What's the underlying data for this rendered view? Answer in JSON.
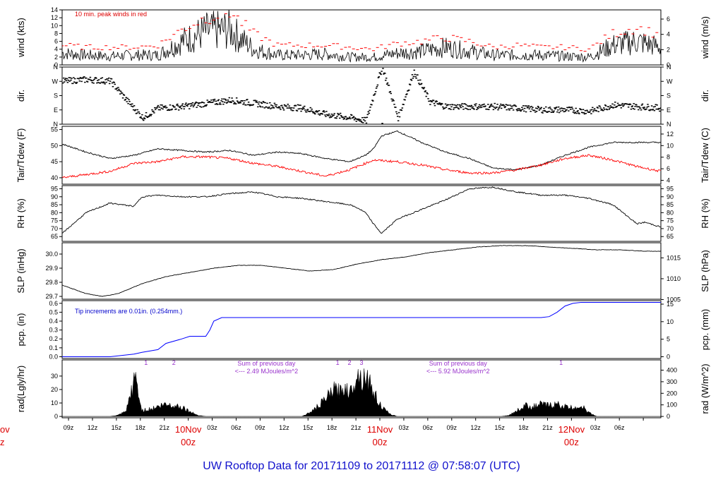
{
  "title": "UW Rooftop Data for 20171109  to  20171112 @ 07:58:07  (UTC)",
  "x_ticks": [
    "09z",
    "12z",
    "15z",
    "18z",
    "21z",
    "03z",
    "06z",
    "09z",
    "12z",
    "15z",
    "18z",
    "21z",
    "03z",
    "06z",
    "09z",
    "12z",
    "15z",
    "18z",
    "21z",
    "03z",
    "06z"
  ],
  "day_labels": [
    {
      "date": "10Nov",
      "time": "00z"
    },
    {
      "date": "11Nov",
      "time": "00z"
    },
    {
      "date": "12Nov",
      "time": "00z"
    }
  ],
  "left_edge_labels": {
    "date": "ov",
    "time": "z"
  },
  "colors": {
    "main": "#000000",
    "peak": "#ff0000",
    "dew": "#ff0000",
    "pcp": "#0000ff",
    "annot_wind": "#dd0000",
    "annot_pcp": "#0000cc",
    "annot_rad": "#9933cc",
    "day": "#dd0000",
    "title": "#1010cc"
  },
  "chart_data": [
    {
      "id": "wind",
      "type": "line",
      "ylabel": "wind (kts)",
      "ylabel_right": "wind (m/s)",
      "ylim": [
        0,
        14
      ],
      "yticks": [
        0,
        2,
        4,
        6,
        8,
        10,
        12,
        14
      ],
      "right_ylim_ms": [
        0,
        7.2
      ],
      "right_ticks": [
        0,
        2,
        4,
        6
      ],
      "annotation": "10 min. peak winds in red",
      "series": [
        {
          "name": "",
          "x_hours": [
            0,
            3,
            6,
            9,
            12,
            15,
            18,
            21,
            24,
            27,
            30,
            33,
            36,
            39,
            42,
            45,
            48,
            51,
            54,
            57,
            60,
            63,
            66,
            69,
            72,
            75
          ],
          "values": [
            3,
            2.5,
            2.2,
            2.5,
            2.5,
            6,
            8.5,
            9,
            4,
            2.5,
            2.5,
            2.8,
            2,
            2,
            3,
            3.5,
            4.5,
            3.5,
            2.5,
            2.5,
            2.5,
            2.2,
            2,
            5,
            6,
            4.5
          ]
        },
        {
          "name": "",
          "x_hours": [
            0,
            3,
            6,
            9,
            12,
            15,
            18,
            21,
            24,
            27,
            30,
            33,
            36,
            39,
            42,
            45,
            48,
            51,
            54,
            57,
            60,
            63,
            66,
            69,
            72,
            75
          ],
          "values": [
            5,
            4.5,
            4.5,
            4.5,
            5,
            9,
            12,
            13.5,
            8,
            5,
            5,
            5,
            4.5,
            4,
            5.5,
            6,
            7,
            6,
            4.5,
            5,
            4.5,
            4.5,
            4,
            8,
            9.5,
            7.5
          ]
        }
      ]
    },
    {
      "id": "dir",
      "type": "scatter",
      "ylabel": "dir.",
      "ylabel_right": "dir.",
      "ylim": [
        0,
        360
      ],
      "yticks": [
        "N",
        "E",
        "S",
        "W",
        "N"
      ],
      "series": [
        {
          "name": "",
          "x_hours": [
            0,
            3,
            6,
            8,
            10,
            12,
            15,
            18,
            21,
            24,
            27,
            30,
            33,
            36,
            38,
            40,
            42,
            44,
            46,
            48,
            51,
            54,
            57,
            60,
            63,
            66,
            69,
            72,
            75
          ],
          "values": [
            270,
            280,
            270,
            150,
            40,
            100,
            110,
            130,
            150,
            130,
            110,
            100,
            60,
            40,
            20,
            360,
            40,
            330,
            140,
            110,
            110,
            110,
            100,
            90,
            90,
            80,
            120,
            110,
            100
          ]
        }
      ]
    },
    {
      "id": "temp",
      "type": "line",
      "ylabel": "Tair/Tdew (F)",
      "ylabel_right": "Tair/Tdew (C)",
      "ylim": [
        38,
        56
      ],
      "yticks": [
        40,
        45,
        50,
        55
      ],
      "right_ticks": [
        4,
        6,
        8,
        10,
        12
      ],
      "series": [
        {
          "name": "",
          "x_hours": [
            0,
            3,
            6,
            9,
            12,
            15,
            18,
            21,
            24,
            27,
            30,
            33,
            36,
            38,
            39,
            40,
            42,
            45,
            48,
            51,
            54,
            57,
            60,
            63,
            66,
            69,
            72,
            75
          ],
          "values": [
            50.5,
            48,
            46,
            47,
            49,
            48.5,
            48,
            48.5,
            47,
            48,
            47.5,
            46,
            45,
            47,
            49,
            53,
            54.5,
            51,
            48,
            46,
            43,
            42.5,
            44,
            47,
            49.5,
            51,
            51,
            51
          ]
        },
        {
          "name": "",
          "x_hours": [
            0,
            3,
            6,
            9,
            12,
            15,
            18,
            21,
            24,
            27,
            30,
            33,
            36,
            39,
            42,
            45,
            48,
            51,
            54,
            57,
            60,
            63,
            66,
            69,
            72,
            75
          ],
          "values": [
            40,
            41,
            42,
            44.5,
            45,
            46.5,
            46.5,
            46,
            44.5,
            43.5,
            42,
            40.5,
            42.5,
            45.5,
            45,
            44,
            42.5,
            41.5,
            41.5,
            42.5,
            44,
            46,
            47,
            45.5,
            43.5,
            42
          ]
        }
      ]
    },
    {
      "id": "rh",
      "type": "line",
      "ylabel": "RH (%)",
      "ylabel_right": "RH (%)",
      "ylim": [
        62,
        97
      ],
      "yticks": [
        65,
        70,
        75,
        80,
        85,
        90,
        95
      ],
      "series": [
        {
          "name": "",
          "x_hours": [
            0,
            3,
            6,
            9,
            10,
            12,
            15,
            18,
            21,
            24,
            27,
            30,
            33,
            36,
            37,
            38,
            39,
            40,
            42,
            45,
            48,
            51,
            54,
            57,
            60,
            63,
            66,
            69,
            70,
            72,
            73,
            75
          ],
          "values": [
            67,
            80,
            86,
            84,
            90,
            91,
            90,
            90,
            92,
            93,
            90,
            89,
            87,
            85,
            83,
            80,
            73,
            67,
            76,
            82,
            88,
            95,
            96,
            93,
            91,
            91,
            89,
            85,
            81,
            73,
            74,
            71
          ]
        }
      ]
    },
    {
      "id": "slp",
      "type": "line",
      "ylabel": "SLP (inHg)",
      "ylabel_right": "SLP (hPa)",
      "ylim": [
        29.68,
        30.08
      ],
      "yticks": [
        29.7,
        29.8,
        29.9,
        30.0
      ],
      "right_ticks": [
        1005,
        1010,
        1015
      ],
      "series": [
        {
          "name": "",
          "x_hours": [
            0,
            3,
            5,
            7,
            10,
            13,
            16,
            19,
            22,
            25,
            28,
            31,
            34,
            37,
            40,
            43,
            46,
            49,
            52,
            55,
            58,
            61,
            64,
            67,
            70,
            73,
            75
          ],
          "values": [
            29.78,
            29.72,
            29.7,
            29.72,
            29.79,
            29.84,
            29.87,
            29.9,
            29.92,
            29.92,
            29.9,
            29.88,
            29.89,
            29.93,
            29.96,
            29.98,
            30.01,
            30.03,
            30.05,
            30.06,
            30.06,
            30.05,
            30.04,
            30.03,
            30.03,
            30.02,
            30.02
          ]
        }
      ]
    },
    {
      "id": "pcp",
      "type": "line",
      "ylabel": "pcp. (in)",
      "ylabel_right": "pcp. (mm)",
      "ylim": [
        -0.02,
        0.63
      ],
      "yticks": [
        0.0,
        0.1,
        0.2,
        0.3,
        0.4,
        0.5,
        0.6
      ],
      "right_ticks": [
        0,
        5,
        10,
        15
      ],
      "annotation": "Tip increments are 0.01in. (0.254mm.)",
      "series": [
        {
          "name": "",
          "x_hours": [
            0,
            6,
            7,
            9,
            10,
            12,
            13,
            15,
            16,
            18,
            18.5,
            19,
            20,
            21,
            30,
            45,
            57,
            60,
            61,
            62,
            63,
            64,
            65,
            75
          ],
          "values": [
            0,
            0,
            0.01,
            0.03,
            0.05,
            0.08,
            0.15,
            0.2,
            0.23,
            0.23,
            0.3,
            0.4,
            0.44,
            0.44,
            0.44,
            0.44,
            0.44,
            0.44,
            0.45,
            0.5,
            0.57,
            0.6,
            0.61,
            0.61
          ]
        }
      ]
    },
    {
      "id": "rad",
      "type": "area",
      "ylabel": "rad(Lgly/hr)",
      "ylabel_right": "rad (W/m^2)",
      "ylim": [
        -1,
        42
      ],
      "yticks": [
        0,
        10,
        20,
        30
      ],
      "right_ticks": [
        0,
        100,
        200,
        300,
        400
      ],
      "annotations": [
        {
          "hour": 10.5,
          "text": "1"
        },
        {
          "hour": 14,
          "text": "2"
        },
        {
          "hour": 34.5,
          "text": "1"
        },
        {
          "hour": 36,
          "text": "2"
        },
        {
          "hour": 37.5,
          "text": "3"
        },
        {
          "hour": 62.5,
          "text": "1"
        }
      ],
      "notes": [
        {
          "hour": 24,
          "line1": "Sum of previous day",
          "line2": "<--- 2.49 MJoules/m^2"
        },
        {
          "hour": 48,
          "line1": "Sum of previous day",
          "line2": "<--- 5.92 MJoules/m^2"
        }
      ],
      "series": [
        {
          "name": "",
          "x_hours": [
            0,
            6,
            7,
            8,
            9,
            9.3,
            9.6,
            10,
            11,
            12,
            13,
            14,
            15,
            16,
            17,
            18,
            19,
            30,
            31,
            32,
            33,
            34,
            35,
            35.5,
            36,
            37,
            37.5,
            38,
            39,
            40,
            41,
            42,
            55,
            56,
            57,
            58,
            59,
            60,
            61,
            62,
            63,
            64,
            65,
            66,
            67,
            75
          ],
          "values": [
            0,
            0,
            1,
            4,
            28,
            33,
            15,
            5,
            6,
            8,
            10,
            9,
            8,
            4,
            1,
            0,
            0,
            0,
            3,
            8,
            14,
            22,
            20,
            26,
            18,
            37,
            30,
            35,
            20,
            8,
            2,
            0,
            0,
            1,
            5,
            9,
            8,
            10,
            9,
            10,
            8,
            7,
            9,
            3,
            0,
            0
          ]
        }
      ]
    }
  ]
}
